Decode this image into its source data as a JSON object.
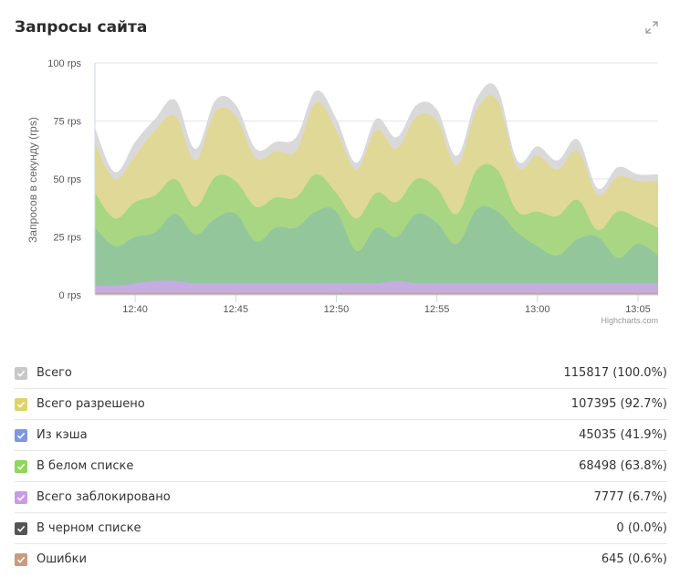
{
  "page_title": "Запросы сайта",
  "expand_icon": "expand-icon",
  "chart_data": {
    "type": "area",
    "stacked": false,
    "ylabel": "Запросов в секунду (rps)",
    "ylim": [
      0,
      100
    ],
    "yticks": [
      "0 rps",
      "25 rps",
      "50 rps",
      "75 rps",
      "100 rps"
    ],
    "xlim": [
      "12:38",
      "13:06"
    ],
    "xticks": [
      "12:40",
      "12:45",
      "12:50",
      "12:55",
      "13:00",
      "13:05"
    ],
    "credits": "Highcharts.com",
    "grid": true,
    "x": [
      "12:38",
      "12:39",
      "12:40",
      "12:41",
      "12:42",
      "12:43",
      "12:44",
      "12:45",
      "12:46",
      "12:47",
      "12:48",
      "12:49",
      "12:50",
      "12:51",
      "12:52",
      "12:53",
      "12:54",
      "12:55",
      "12:56",
      "12:57",
      "12:58",
      "12:59",
      "13:00",
      "13:01",
      "13:02",
      "13:03",
      "13:04",
      "13:05",
      "13:06"
    ],
    "series": [
      {
        "name": "Всего",
        "color": "#d9d9d9",
        "values": [
          72,
          53,
          66,
          76,
          84,
          63,
          84,
          82,
          63,
          66,
          68,
          88,
          76,
          57,
          76,
          68,
          82,
          80,
          60,
          85,
          89,
          58,
          64,
          58,
          67,
          46,
          55,
          52,
          52
        ]
      },
      {
        "name": "Всего разрешено",
        "color": "#e0d896",
        "values": [
          65,
          50,
          60,
          71,
          77,
          58,
          79,
          77,
          59,
          62,
          62,
          83,
          71,
          54,
          71,
          63,
          77,
          75,
          56,
          80,
          84,
          55,
          60,
          54,
          62,
          43,
          51,
          49,
          49
        ]
      },
      {
        "name": "В белом списке",
        "color": "#a8d683",
        "values": [
          44,
          33,
          40,
          43,
          50,
          38,
          51,
          49,
          38,
          42,
          42,
          52,
          44,
          33,
          44,
          40,
          50,
          46,
          35,
          54,
          54,
          36,
          36,
          34,
          41,
          28,
          36,
          33,
          29
        ]
      },
      {
        "name": "Из кэша",
        "color": "#93c79b",
        "values": [
          29,
          21,
          25,
          27,
          35,
          26,
          33,
          35,
          23,
          29,
          29,
          36,
          36,
          19,
          29,
          25,
          35,
          31,
          22,
          37,
          36,
          27,
          21,
          17,
          24,
          25,
          16,
          22,
          17
        ]
      },
      {
        "name": "Всего заблокировано",
        "color": "#c5ace1",
        "values": [
          4,
          4,
          5,
          6,
          6,
          5,
          5,
          5,
          5,
          5,
          5,
          5,
          5,
          5,
          5,
          6,
          5,
          5,
          5,
          5,
          5,
          5,
          5,
          5,
          5,
          5,
          5,
          5,
          5
        ]
      },
      {
        "name": "Ошибки",
        "color": "#c9a493",
        "values": [
          1,
          1,
          1,
          1,
          1,
          1,
          1,
          1,
          1,
          1,
          1,
          1,
          1,
          1,
          1,
          1,
          1,
          1,
          1,
          1,
          1,
          1,
          1,
          1,
          1,
          1,
          1,
          1,
          1
        ]
      },
      {
        "name": "В черном списке",
        "color": "#555555",
        "values": [
          0,
          0,
          0,
          0,
          0,
          0,
          0,
          0,
          0,
          0,
          0,
          0,
          0,
          0,
          0,
          0,
          0,
          0,
          0,
          0,
          0,
          0,
          0,
          0,
          0,
          0,
          0,
          0,
          0
        ]
      }
    ]
  },
  "legend": [
    {
      "label": "Всего",
      "value": "115817 (100.0%)",
      "color": "#c8c8c8",
      "icon": "check-icon"
    },
    {
      "label": "Всего разрешено",
      "value": "107395 (92.7%)",
      "color": "#ddd36a",
      "icon": "check-icon"
    },
    {
      "label": "Из кэша",
      "value": "45035 (41.9%)",
      "color": "#7f97e3",
      "icon": "check-icon"
    },
    {
      "label": "В белом списке",
      "value": "68498 (63.8%)",
      "color": "#8fd65a",
      "icon": "check-icon"
    },
    {
      "label": "Всего заблокировано",
      "value": "7777 (6.7%)",
      "color": "#c89ce8",
      "icon": "check-icon"
    },
    {
      "label": "В черном списке",
      "value": "0 (0.0%)",
      "color": "#555555",
      "icon": "check-icon"
    },
    {
      "label": "Ошибки",
      "value": "645 (0.6%)",
      "color": "#c99b80",
      "icon": "check-icon"
    }
  ]
}
